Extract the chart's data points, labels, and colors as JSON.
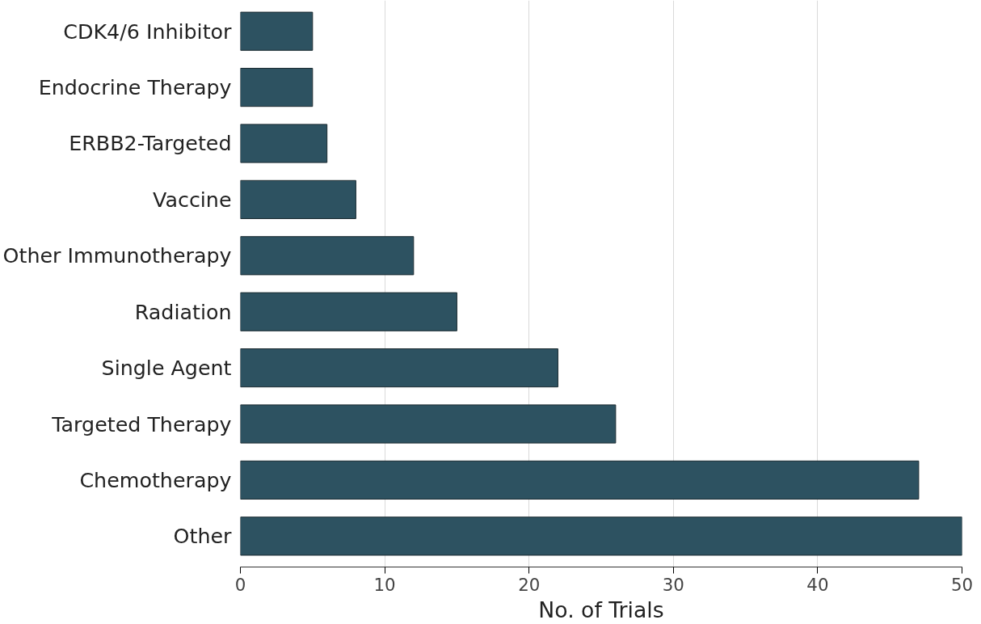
{
  "chart_data": {
    "type": "bar",
    "orientation": "horizontal",
    "xlabel": "No. of Trials",
    "categories": [
      "CDK4/6 Inhibitor",
      "Endocrine Therapy",
      "ERBB2-Targeted",
      "Vaccine",
      "Other Immunotherapy",
      "Radiation",
      "Single Agent",
      "Targeted Therapy",
      "Chemotherapy",
      "Other"
    ],
    "values": [
      5,
      5,
      6,
      8,
      12,
      15,
      22,
      26,
      47,
      50
    ],
    "color": "#2d5261",
    "xlim": [
      0,
      50
    ],
    "xticks": [
      0,
      10,
      20,
      30,
      40,
      50
    ],
    "grid": "x"
  }
}
